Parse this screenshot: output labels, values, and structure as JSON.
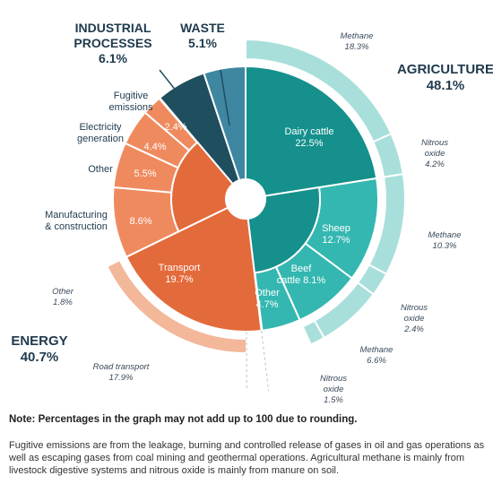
{
  "chart_data": {
    "type": "sunburst",
    "title": "",
    "sectors": [
      {
        "name": "AGRICULTURE",
        "value": 48.1,
        "value_label": "48.1%",
        "color": "#15908c",
        "subsectors": [
          {
            "name": "Dairy cattle",
            "value": 22.5,
            "value_label": "22.5%",
            "gases": [
              {
                "name": "Methane",
                "value": 18.3,
                "value_label": "18.3%"
              },
              {
                "name": "Nitrous oxide",
                "value": 4.2,
                "value_label": "4.2%"
              }
            ]
          },
          {
            "name": "Sheep",
            "value": 12.7,
            "value_label": "12.7%",
            "gases": [
              {
                "name": "Methane",
                "value": 10.3,
                "value_label": "10.3%"
              },
              {
                "name": "Nitrous oxide",
                "value": 2.4,
                "value_label": "2.4%"
              }
            ]
          },
          {
            "name": "Beef cattle",
            "value": 8.1,
            "value_label": "8.1%",
            "gases": [
              {
                "name": "Methane",
                "value": 6.6,
                "value_label": "6.6%"
              },
              {
                "name": "Nitrous oxide",
                "value": 1.5,
                "value_label": "1.5%"
              }
            ]
          },
          {
            "name": "Other",
            "value": 4.7,
            "value_label": "4.7%",
            "gases": []
          }
        ]
      },
      {
        "name": "ENERGY",
        "value": 40.7,
        "value_label": "40.7%",
        "color": "#e36a3b",
        "subsectors": [
          {
            "name": "Transport",
            "value": 19.7,
            "value_label": "19.7%",
            "gases": [
              {
                "name": "Other",
                "value": 1.8,
                "value_label": "1.8%"
              },
              {
                "name": "Road transport",
                "value": 17.9,
                "value_label": "17.9%"
              }
            ]
          },
          {
            "name": "Manufacturing & construction",
            "value": 8.6,
            "value_label": "8.6%",
            "gases": []
          },
          {
            "name": "Other",
            "value": 5.5,
            "value_label": "5.5%",
            "gases": []
          },
          {
            "name": "Electricity generation",
            "value": 4.4,
            "value_label": "4.4%",
            "gases": []
          },
          {
            "name": "Fugitive emissions",
            "value": 2.4,
            "value_label": "2.4%",
            "gases": []
          }
        ]
      },
      {
        "name": "INDUSTRIAL PROCESSES",
        "value": 6.1,
        "value_label": "6.1%",
        "color": "#1f4e5f",
        "subsectors": []
      },
      {
        "name": "WASTE",
        "value": 5.1,
        "value_label": "5.1%",
        "color": "#3f86a1",
        "subsectors": []
      }
    ],
    "colors": {
      "agriculture_inner": "#15908c",
      "agriculture_ring": "#34b7b1",
      "agriculture_outer": "#a9dfdb",
      "energy_inner": "#e36a3b",
      "energy_ring": "#ef8a5f",
      "energy_outer": "#f3b79a",
      "industrial": "#1f4e5f",
      "waste": "#3f86a1",
      "sector_label": "#1f3a4d",
      "italic_label": "#3a4a5a"
    }
  },
  "notes": {
    "bold": "Note: Percentages in the graph may not add up to 100 due to rounding.",
    "text": "Fugitive emissions are from the leakage, burning and controlled release of gases in oil and gas operations as well as escaping gases from coal mining and geothermal operations. Agricultural methane is mainly from livestock digestive systems and nitrous oxide is mainly from manure on soil."
  }
}
